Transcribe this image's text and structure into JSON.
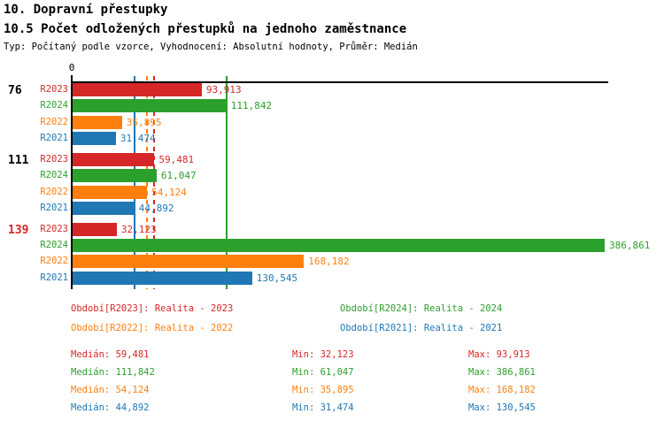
{
  "header": {
    "title": "10. Dopravní přestupky",
    "subtitle": "10.5 Počet odložených přestupků na jednoho zaměstnance",
    "meta": "Typ: Počítaný podle vzorce, Vyhodnocení: Absolutní hodnoty, Průměr: Medián"
  },
  "chart_data": {
    "type": "bar",
    "orientation": "horizontal",
    "title": "10.5 Počet odložených přestupků na jednoho zaměstnance",
    "axis": {
      "origin_label": "0",
      "xmin": 0,
      "xmax_implied": 390,
      "grid": false
    },
    "palette": {
      "R2023": "#d62728",
      "R2024": "#2ca02c",
      "R2022": "#ff7f0e",
      "R2021": "#1f77b4",
      "black": "#000000"
    },
    "series_order": [
      "R2023",
      "R2024",
      "R2022",
      "R2021"
    ],
    "groups": [
      {
        "label": "76",
        "label_color": "#000000",
        "bars": [
          {
            "series": "R2023",
            "value": 93.913,
            "display": "93,913"
          },
          {
            "series": "R2024",
            "value": 111.842,
            "display": "111,842"
          },
          {
            "series": "R2022",
            "value": 35.895,
            "display": "35,895"
          },
          {
            "series": "R2021",
            "value": 31.474,
            "display": "31,474"
          }
        ]
      },
      {
        "label": "111",
        "label_color": "#000000",
        "bars": [
          {
            "series": "R2023",
            "value": 59.481,
            "display": "59,481"
          },
          {
            "series": "R2024",
            "value": 61.047,
            "display": "61,047"
          },
          {
            "series": "R2022",
            "value": 54.124,
            "display": "54,124"
          },
          {
            "series": "R2021",
            "value": 44.892,
            "display": "44,892"
          }
        ]
      },
      {
        "label": "139",
        "label_color": "#d62728",
        "bars": [
          {
            "series": "R2023",
            "value": 32.123,
            "display": "32,123"
          },
          {
            "series": "R2024",
            "value": 386.861,
            "display": "386,861"
          },
          {
            "series": "R2022",
            "value": 168.182,
            "display": "168,182"
          },
          {
            "series": "R2021",
            "value": 130.545,
            "display": "130,545"
          }
        ]
      }
    ],
    "reference_lines": [
      {
        "series": "R2021",
        "value": 44.892,
        "style": "solid"
      },
      {
        "series": "R2022",
        "value": 54.124,
        "style": "dashed"
      },
      {
        "series": "R2023",
        "value": 59.481,
        "style": "dashed"
      },
      {
        "series": "R2024",
        "value": 111.842,
        "style": "solid"
      }
    ],
    "legend": [
      {
        "series": "R2023",
        "label": "Období[R2023]: Realita - 2023",
        "row": 0,
        "col": 0
      },
      {
        "series": "R2024",
        "label": "Období[R2024]: Realita - 2024",
        "row": 0,
        "col": 1
      },
      {
        "series": "R2022",
        "label": "Období[R2022]: Realita - 2022",
        "row": 1,
        "col": 0
      },
      {
        "series": "R2021",
        "label": "Období[R2021]: Realita - 2021",
        "row": 1,
        "col": 1
      }
    ],
    "stats": [
      {
        "series": "R2023",
        "median": "Medián: 59,481",
        "min": "Min: 32,123",
        "max": "Max: 93,913"
      },
      {
        "series": "R2024",
        "median": "Medián: 111,842",
        "min": "Min: 61,047",
        "max": "Max: 386,861"
      },
      {
        "series": "R2022",
        "median": "Medián: 54,124",
        "min": "Min: 35,895",
        "max": "Max: 168,182"
      },
      {
        "series": "R2021",
        "median": "Medián: 44,892",
        "min": "Min: 31,474",
        "max": "Max: 130,545"
      }
    ]
  }
}
